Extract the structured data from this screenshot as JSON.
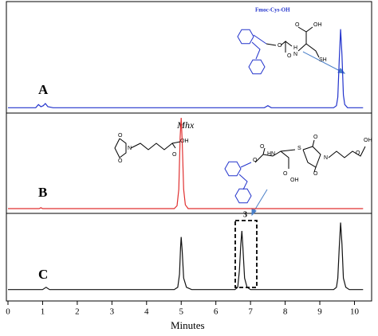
{
  "chart_data": [
    {
      "type": "line",
      "label": "A",
      "color": "#2233cc",
      "ylim": [
        -5,
        100
      ],
      "x": [
        0,
        0.8,
        0.88,
        0.95,
        1.02,
        1.08,
        1.15,
        1.3,
        7.4,
        7.5,
        7.6,
        9.4,
        9.48,
        9.52,
        9.56,
        9.6,
        9.64,
        9.68,
        9.72,
        9.8,
        10.25
      ],
      "values": [
        0,
        0,
        3,
        1,
        2,
        4,
        1,
        0,
        0,
        2,
        0,
        0,
        2,
        10,
        45,
        74,
        50,
        12,
        3,
        0,
        0
      ]
    },
    {
      "type": "line",
      "label": "B",
      "color": "#e03030",
      "ylim": [
        -5,
        100
      ],
      "x": [
        0,
        0.9,
        0.95,
        1.0,
        4.8,
        4.88,
        4.93,
        4.97,
        5.0,
        5.03,
        5.07,
        5.12,
        5.2,
        10.25
      ],
      "values": [
        0,
        0,
        1,
        0,
        0,
        3,
        20,
        75,
        95,
        70,
        20,
        4,
        0,
        0
      ]
    },
    {
      "type": "line",
      "label": "C",
      "color": "#111111",
      "ylim": [
        -15,
        100
      ],
      "x": [
        0,
        1.0,
        1.1,
        1.2,
        4.8,
        4.9,
        4.95,
        4.98,
        5.0,
        5.03,
        5.07,
        5.15,
        5.3,
        6.55,
        6.63,
        6.68,
        6.72,
        6.75,
        6.78,
        6.83,
        6.9,
        7.0,
        9.4,
        9.48,
        9.52,
        9.56,
        9.6,
        9.64,
        9.68,
        9.75,
        9.85,
        10.25
      ],
      "values": [
        0,
        0,
        3,
        0,
        0,
        3,
        20,
        55,
        69,
        50,
        15,
        3,
        0,
        0,
        3,
        25,
        60,
        77,
        55,
        15,
        3,
        0,
        0,
        3,
        15,
        55,
        88,
        60,
        15,
        3,
        0,
        0
      ],
      "annotation": "3",
      "xlim": [
        0,
        10.25
      ],
      "xticks": [
        0,
        1,
        2,
        3,
        4,
        5,
        6,
        7,
        8,
        9,
        10
      ],
      "xlabel": "Minutes"
    }
  ],
  "structures": [
    {
      "name": "Fmoc-Cys-OH",
      "atoms": [
        "O",
        "O",
        "H",
        "N",
        "O",
        "OH",
        "SH"
      ]
    },
    {
      "name": "Mhx",
      "atoms": [
        "O",
        "N",
        "O",
        "O",
        "OH"
      ]
    },
    {
      "atoms": [
        "O",
        "O",
        "HN",
        "O",
        "OH",
        "S",
        "O",
        "N",
        "O",
        "O",
        "OH"
      ]
    }
  ]
}
